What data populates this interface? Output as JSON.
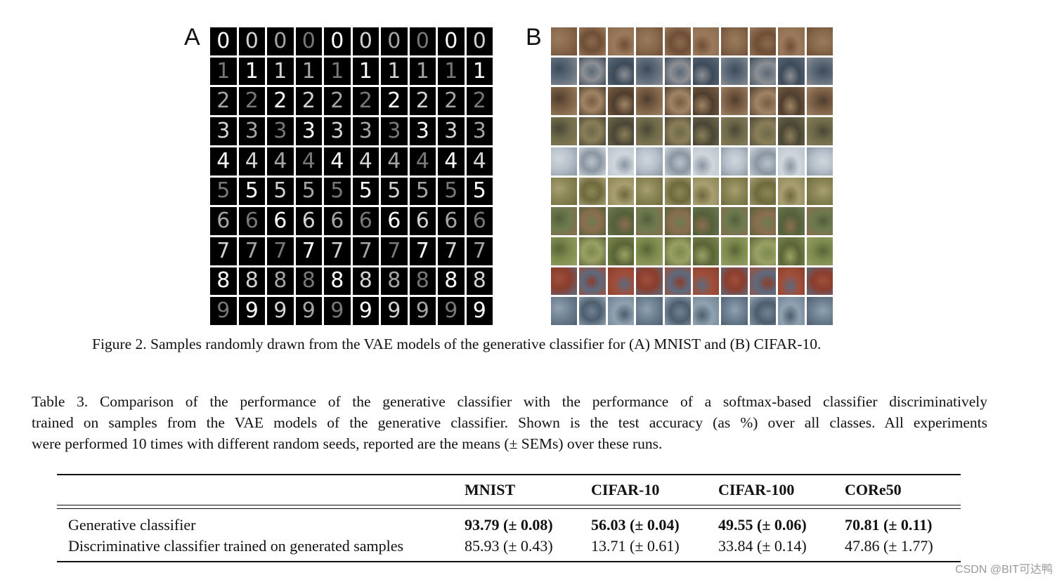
{
  "figure": {
    "panel_a_label": "A",
    "panel_b_label": "B",
    "mnist_rows": [
      [
        "0",
        "0",
        "0",
        "0",
        "0",
        "0",
        "0",
        "0",
        "0",
        "0"
      ],
      [
        "1",
        "1",
        "1",
        "1",
        "1",
        "1",
        "1",
        "1",
        "1",
        "1"
      ],
      [
        "2",
        "2",
        "2",
        "2",
        "2",
        "2",
        "2",
        "2",
        "2",
        "2"
      ],
      [
        "3",
        "3",
        "3",
        "3",
        "3",
        "3",
        "3",
        "3",
        "3",
        "3"
      ],
      [
        "4",
        "4",
        "4",
        "4",
        "4",
        "4",
        "4",
        "4",
        "4",
        "4"
      ],
      [
        "5",
        "5",
        "5",
        "5",
        "5",
        "5",
        "5",
        "5",
        "5",
        "5"
      ],
      [
        "6",
        "6",
        "6",
        "6",
        "6",
        "6",
        "6",
        "6",
        "6",
        "6"
      ],
      [
        "7",
        "7",
        "7",
        "7",
        "7",
        "7",
        "7",
        "7",
        "7",
        "7"
      ],
      [
        "8",
        "8",
        "8",
        "8",
        "8",
        "8",
        "8",
        "8",
        "8",
        "8"
      ],
      [
        "9",
        "9",
        "9",
        "9",
        "9",
        "9",
        "9",
        "9",
        "9",
        "9"
      ]
    ],
    "cifar_row_colors": [
      [
        "#8a6a4c",
        "#6f4e36",
        "#9b7a5c"
      ],
      [
        "#5c6a78",
        "#8c8f93",
        "#3d4a5a"
      ],
      [
        "#7a5e44",
        "#a08464",
        "#4f3e2e"
      ],
      [
        "#6e6a4a",
        "#8a7e58",
        "#4a4636"
      ],
      [
        "#b8c2cc",
        "#8a96a2",
        "#d0d6dc"
      ],
      [
        "#8a8654",
        "#6e6a3e",
        "#a89e72"
      ],
      [
        "#6e7a4e",
        "#8a6e4e",
        "#54603a"
      ],
      [
        "#7c8a4e",
        "#9aa064",
        "#5a6436"
      ],
      [
        "#8a3e2e",
        "#5c6a7e",
        "#a04e3a"
      ],
      [
        "#6e8294",
        "#4e5e6e",
        "#90a2b0"
      ]
    ],
    "caption": "Figure 2. Samples randomly drawn from the VAE models of the generative classifier for (A) MNIST and (B) CIFAR-10."
  },
  "table": {
    "caption_lines": [
      "Table 3. Comparison of the performance of the generative classifier with the performance of a softmax-based classifier discriminatively",
      "trained on samples from the VAE models of the generative classifier. Shown is the test accuracy (as %) over all classes. All experiments",
      "were performed 10 times with different random seeds, reported are the means (± SEMs) over these runs."
    ],
    "columns": [
      "MNIST",
      "CIFAR-10",
      "CIFAR-100",
      "CORe50"
    ],
    "rows": [
      {
        "label": "Generative classifier",
        "values": [
          "93.79 (± 0.08)",
          "56.03 (± 0.04)",
          "49.55 (± 0.06)",
          "70.81 (± 0.11)"
        ]
      },
      {
        "label": "Discriminative classifier trained on generated samples",
        "values": [
          "85.93 (± 0.43)",
          "13.71 (± 0.61)",
          "33.84 (± 0.14)",
          "47.86 (± 1.77)"
        ]
      }
    ]
  },
  "watermark": "CSDN @BIT可达鸭"
}
